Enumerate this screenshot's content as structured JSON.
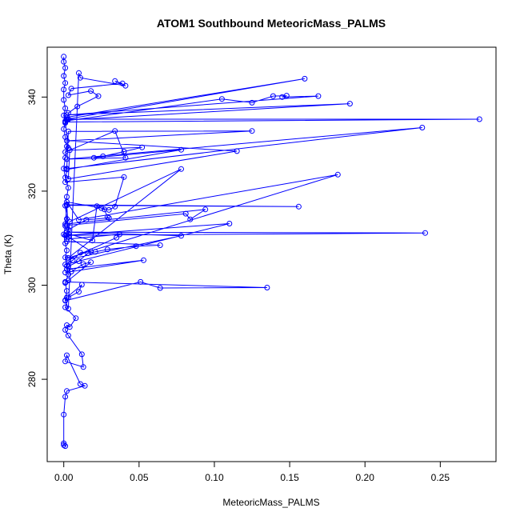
{
  "chart_data": {
    "type": "line",
    "title": "ATOM1 Southbound MeteoricMass_PALMS",
    "xlabel": "MeteoricMass_PALMS",
    "ylabel": "Theta (K)",
    "xlim": [
      -0.011,
      0.287
    ],
    "ylim": [
      262.5,
      350.6
    ],
    "x_ticks": [
      0.0,
      0.05,
      0.1,
      0.15,
      0.2,
      0.25
    ],
    "x_tick_labels": [
      "0.00",
      "0.05",
      "0.10",
      "0.15",
      "0.20",
      "0.25"
    ],
    "y_ticks": [
      280,
      300,
      320,
      340
    ],
    "y_tick_labels": [
      "280",
      "300",
      "320",
      "340"
    ],
    "grid": false,
    "legend": "none",
    "colors": {
      "series": "#0000ff"
    },
    "series": [
      {
        "marker": "open-circle",
        "line": "solid",
        "x": [
          0.0,
          0.0,
          0.001,
          0.0,
          0.001,
          0.0,
          0.0,
          0.001,
          0.0,
          0.001,
          0.0,
          0.001,
          0.002,
          0.001,
          0.0,
          0.001,
          0.003,
          0.002,
          0.001,
          0.002,
          0.001,
          0.0,
          0.001,
          0.002,
          0.001,
          0.002,
          0.003,
          0.001,
          0.002,
          0.001,
          0.003,
          0.01,
          0.011,
          0.041,
          0.034,
          0.039,
          0.005,
          0.003,
          0.018,
          0.023,
          0.009,
          0.003,
          0.002,
          0.16,
          0.002,
          0.001,
          0.105,
          0.125,
          0.139,
          0.148,
          0.145,
          0.169,
          0.002,
          0.19,
          0.002,
          0.003,
          0.276,
          0.001,
          0.003,
          0.001,
          0.034,
          0.041,
          0.002,
          0.238,
          0.002,
          0.003,
          0.125,
          0.002,
          0.115,
          0.003,
          0.004,
          0.052,
          0.04,
          0.026,
          0.02,
          0.078,
          0.002,
          0.001,
          0.04,
          0.034,
          0.03,
          0.025,
          0.002,
          0.01,
          0.182,
          0.003,
          0.078,
          0.004,
          0.003,
          0.019,
          0.022,
          0.027,
          0.029,
          0.03,
          0.015,
          0.003,
          0.002,
          0.156,
          0.002,
          0.001,
          0.094,
          0.084,
          0.081,
          0.002,
          0.003,
          0.018,
          0.011,
          0.006,
          0.001,
          0.11,
          0.002,
          0.002,
          0.037,
          0.035,
          0.003,
          0.078,
          0.002,
          0.24,
          0.001,
          0.002,
          0.064,
          0.048,
          0.029,
          0.021,
          0.016,
          0.01,
          0.003,
          0.002,
          0.053,
          0.001,
          0.005,
          0.013,
          0.018,
          0.003,
          0.001,
          0.135,
          0.064,
          0.051,
          0.001,
          0.002,
          0.012,
          0.01,
          0.003,
          0.001,
          0.008,
          0.004,
          0.002,
          0.001,
          0.003,
          0.012,
          0.013,
          0.001,
          0.002,
          0.011,
          0.014,
          0.002,
          0.001,
          0.0,
          0.0,
          0.0,
          0.001
        ],
        "y": [
          348.6,
          347.5,
          346.2,
          344.5,
          343.0,
          341.6,
          339.4,
          337.6,
          336.1,
          334.5,
          333.2,
          331.5,
          329.5,
          327.1,
          324.8,
          322.9,
          320.7,
          318.8,
          316.9,
          314.1,
          312.6,
          310.8,
          308.9,
          307.4,
          305.9,
          304.1,
          302.3,
          300.5,
          298.8,
          296.8,
          295.0,
          345.1,
          344.1,
          342.4,
          343.4,
          342.9,
          341.8,
          340.4,
          341.3,
          340.2,
          338.0,
          336.6,
          335.3,
          343.9,
          335.7,
          334.9,
          339.6,
          338.8,
          340.2,
          340.3,
          340.0,
          340.2,
          336.2,
          338.6,
          335.1,
          335.3,
          335.3,
          334.7,
          329.2,
          328.3,
          332.8,
          327.1,
          326.8,
          333.5,
          324.8,
          332.7,
          332.8,
          330.7,
          328.5,
          322.6,
          328.7,
          329.3,
          328.4,
          327.4,
          327.1,
          328.8,
          324.6,
          321.9,
          323.0,
          316.7,
          316.0,
          316.4,
          317.7,
          313.9,
          323.5,
          305.8,
          324.7,
          313.5,
          310.9,
          309.5,
          316.8,
          316.1,
          314.5,
          314.3,
          313.9,
          311.8,
          317.1,
          316.7,
          317.0,
          313.0,
          316.1,
          314.0,
          315.2,
          312.7,
          310.3,
          307.2,
          306.9,
          305.3,
          304.4,
          313.1,
          310.6,
          309.8,
          310.8,
          310.1,
          305.5,
          310.5,
          311.3,
          311.1,
          310.6,
          309.3,
          308.5,
          308.3,
          307.6,
          307.1,
          306.8,
          305.1,
          304.0,
          303.4,
          305.3,
          302.7,
          302.9,
          304.5,
          304.9,
          301.0,
          300.7,
          299.5,
          299.4,
          300.7,
          296.7,
          297.4,
          300.1,
          298.6,
          297.4,
          295.3,
          293.0,
          291.1,
          291.5,
          290.5,
          289.3,
          285.3,
          282.6,
          283.8,
          285.1,
          279.0,
          278.6,
          277.5,
          276.3,
          272.5,
          266.0,
          266.4,
          265.8
        ]
      }
    ]
  }
}
